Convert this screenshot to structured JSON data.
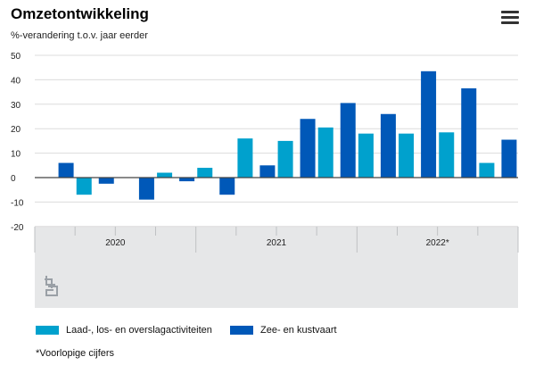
{
  "header": {
    "title": "Omzetontwikkeling",
    "subtitle": "%-verandering t.o.v. jaar eerder",
    "menu_icon": "hamburger-menu-icon"
  },
  "colors": {
    "series1": "#00a1cd",
    "series2": "#0058b8",
    "axis_band": "#e6e7e8",
    "grid": "#dcdcdc"
  },
  "chart_data": {
    "type": "bar",
    "title": "Omzetontwikkeling",
    "subtitle": "%-verandering t.o.v. jaar eerder",
    "ylim": [
      -20,
      50
    ],
    "yticks": [
      50,
      40,
      30,
      20,
      10,
      0,
      -10,
      -20
    ],
    "ytick_labels": [
      "50",
      "40",
      "30",
      "20",
      "10",
      "0",
      "-10",
      "-20"
    ],
    "year_labels": [
      "2020",
      "2021",
      "2022*"
    ],
    "quarters_per_year": 4,
    "series": [
      {
        "name": "Laad-, los- en overslagactiviteiten",
        "values": [
          0,
          -7,
          0,
          2,
          4,
          16,
          15,
          20.5,
          18,
          18,
          18.5,
          6
        ]
      },
      {
        "name": "Zee- en kustvaart",
        "values": [
          6,
          -2.5,
          -9,
          -1.5,
          -7,
          5,
          24,
          30.5,
          26,
          43.5,
          36.5,
          15.5
        ]
      }
    ],
    "legend_position": "bottom-left",
    "grid": true
  },
  "legend": {
    "item1": "Laad-, los- en overslagactiviteiten",
    "item2": "Zee- en kustvaart"
  },
  "footnote": "*Voorlopige cijfers",
  "logo_icon": "cbs-logo-icon"
}
